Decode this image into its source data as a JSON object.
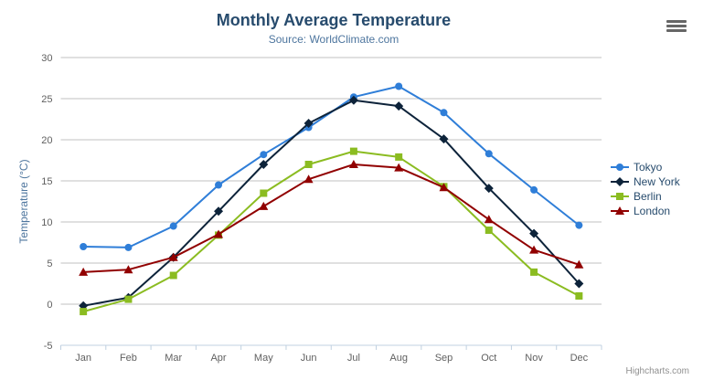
{
  "title": "Monthly Average Temperature",
  "subtitle": "Source: WorldClimate.com",
  "credits": "Highcharts.com",
  "icons": {
    "export_menu": "hamburger-icon"
  },
  "chart_data": {
    "type": "line",
    "title": "Monthly Average Temperature",
    "subtitle": "Source: WorldClimate.com",
    "categories": [
      "Jan",
      "Feb",
      "Mar",
      "Apr",
      "May",
      "Jun",
      "Jul",
      "Aug",
      "Sep",
      "Oct",
      "Nov",
      "Dec"
    ],
    "series": [
      {
        "name": "Tokyo",
        "marker": "circle",
        "color": "#2f7ed8",
        "values": [
          7.0,
          6.9,
          9.5,
          14.5,
          18.2,
          21.5,
          25.2,
          26.5,
          23.3,
          18.3,
          13.9,
          9.6
        ]
      },
      {
        "name": "New York",
        "marker": "diamond",
        "color": "#0d233a",
        "values": [
          -0.2,
          0.8,
          5.7,
          11.3,
          17.0,
          22.0,
          24.8,
          24.1,
          20.1,
          14.1,
          8.6,
          2.5
        ]
      },
      {
        "name": "Berlin",
        "marker": "square",
        "color": "#8bbc21",
        "values": [
          -0.9,
          0.6,
          3.5,
          8.4,
          13.5,
          17.0,
          18.6,
          17.9,
          14.3,
          9.0,
          3.9,
          1.0
        ]
      },
      {
        "name": "London",
        "marker": "triangle",
        "color": "#910000",
        "values": [
          3.9,
          4.2,
          5.7,
          8.5,
          11.9,
          15.2,
          17.0,
          16.6,
          14.2,
          10.3,
          6.6,
          4.8
        ]
      }
    ],
    "xlabel": "",
    "ylabel": "Temperature (°C)",
    "ylim": [
      -5,
      30
    ],
    "ytick_step": 5,
    "yticks": [
      -5,
      0,
      5,
      10,
      15,
      20,
      25,
      30
    ],
    "grid": true,
    "legend_position": "right",
    "colors": {
      "title": "#274b6d",
      "subtitle": "#4d759e",
      "axis_title": "#4d759e",
      "axis_labels": "#606060",
      "gridline": "#C0C0C0",
      "axis_line": "#C0D0E0",
      "legend_text": "#274b6d",
      "credits": "#909090",
      "menu_icon": "#666666",
      "background": "#ffffff"
    }
  }
}
